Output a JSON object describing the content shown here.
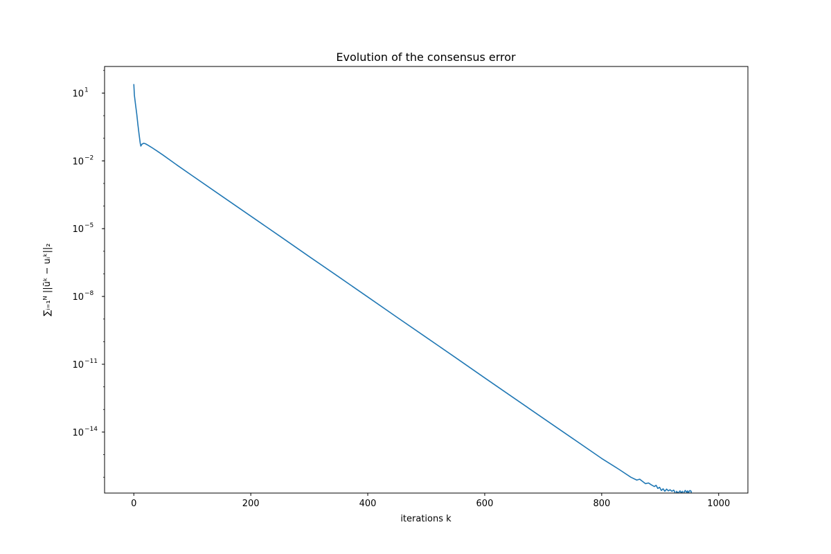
{
  "chart_data": {
    "type": "line",
    "title": "Evolution of the consensus error",
    "xlabel": "iterations k",
    "ylabel": "∑ᵢ₌₁ᴺ ||ūᵏ − uᵢᵏ||₂",
    "y_scale": "log",
    "xlim": [
      -50,
      1050
    ],
    "ylim": [
      2e-17,
      150
    ],
    "grid": false,
    "x_ticks": [
      {
        "value": 0,
        "label": "0"
      },
      {
        "value": 200,
        "label": "200"
      },
      {
        "value": 400,
        "label": "400"
      },
      {
        "value": 600,
        "label": "600"
      },
      {
        "value": 800,
        "label": "800"
      },
      {
        "value": 1000,
        "label": "1000"
      }
    ],
    "y_ticks": [
      {
        "value": 10,
        "label": "10",
        "exp": "1"
      },
      {
        "value": 0.01,
        "label": "10",
        "exp": "−2"
      },
      {
        "value": 1e-05,
        "label": "10",
        "exp": "−5"
      },
      {
        "value": 1e-08,
        "label": "10",
        "exp": "−8"
      },
      {
        "value": 1e-11,
        "label": "10",
        "exp": "−11"
      },
      {
        "value": 1e-14,
        "label": "10",
        "exp": "−14"
      }
    ],
    "series": [
      {
        "color": "#1f77b4",
        "points": [
          [
            0,
            25
          ],
          [
            1,
            8
          ],
          [
            3,
            3
          ],
          [
            5,
            1.2
          ],
          [
            7,
            0.4
          ],
          [
            9,
            0.15
          ],
          [
            11,
            0.06
          ],
          [
            12,
            0.045
          ],
          [
            14,
            0.055
          ],
          [
            17,
            0.06
          ],
          [
            20,
            0.057
          ],
          [
            25,
            0.048
          ],
          [
            30,
            0.04
          ],
          [
            40,
            0.027
          ],
          [
            50,
            0.018
          ],
          [
            75,
            0.0062
          ],
          [
            100,
            0.0022
          ],
          [
            150,
            0.00028
          ],
          [
            200,
            3.6e-05
          ],
          [
            250,
            4.6e-06
          ],
          [
            300,
            5.8e-07
          ],
          [
            350,
            7.5e-08
          ],
          [
            400,
            9.5e-09
          ],
          [
            450,
            1.2e-09
          ],
          [
            500,
            1.55e-10
          ],
          [
            550,
            1.98e-11
          ],
          [
            600,
            2.5e-12
          ],
          [
            650,
            3.2e-13
          ],
          [
            700,
            4.1e-14
          ],
          [
            750,
            5.3e-15
          ],
          [
            800,
            6.8e-16
          ],
          [
            830,
            2.2e-16
          ],
          [
            850,
            1e-16
          ],
          [
            860,
            7.5e-17
          ],
          [
            865,
            8.2e-17
          ],
          [
            870,
            6.5e-17
          ],
          [
            875,
            5.2e-17
          ],
          [
            880,
            5.6e-17
          ],
          [
            885,
            4.6e-17
          ],
          [
            890,
            3.9e-17
          ],
          [
            893,
            4.4e-17
          ],
          [
            896,
            3.2e-17
          ],
          [
            899,
            3.6e-17
          ],
          [
            902,
            2.6e-17
          ],
          [
            905,
            3.1e-17
          ],
          [
            908,
            2.4e-17
          ],
          [
            911,
            3e-17
          ],
          [
            914,
            2.5e-17
          ],
          [
            917,
            2.8e-17
          ],
          [
            920,
            2.4e-17
          ],
          [
            923,
            2.7e-17
          ],
          [
            925,
            2.3e-17
          ],
          [
            926,
            1e-18
          ],
          [
            927,
            1e-18
          ],
          [
            928,
            2.4e-17
          ],
          [
            930,
            2.1e-17
          ],
          [
            931,
            1e-18
          ],
          [
            932,
            2.2e-17
          ],
          [
            934,
            2.5e-17
          ],
          [
            936,
            2e-17
          ],
          [
            938,
            2.4e-17
          ],
          [
            939,
            1e-18
          ],
          [
            940,
            1e-18
          ],
          [
            941,
            2.3e-17
          ],
          [
            943,
            2.6e-17
          ],
          [
            945,
            2.2e-17
          ],
          [
            947,
            2.5e-17
          ],
          [
            948,
            1e-18
          ],
          [
            949,
            2.3e-17
          ],
          [
            951,
            2.6e-17
          ],
          [
            953,
            2.4e-17
          ],
          [
            953.5,
            1e-18
          ]
        ]
      }
    ]
  }
}
